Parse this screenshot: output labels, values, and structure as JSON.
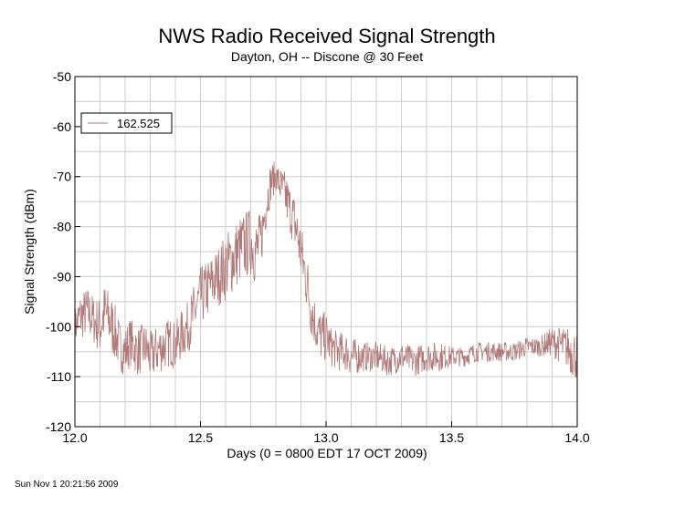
{
  "chart_data": {
    "type": "line",
    "title": "NWS Radio Received Signal Strength",
    "subtitle": "Dayton, OH -- Discone @ 30 Feet",
    "xlabel": "Days (0 = 0800 EDT 17 OCT 2009)",
    "ylabel": "Signal Strength (dBm)",
    "xlim": [
      12.0,
      14.0
    ],
    "ylim": [
      -120,
      -50
    ],
    "x_ticks": [
      12.0,
      12.5,
      13.0,
      13.5,
      14.0
    ],
    "x_tick_labels": [
      "12.0",
      "12.5",
      "13.0",
      "13.5",
      "14.0"
    ],
    "y_ticks": [
      -50,
      -60,
      -70,
      -80,
      -90,
      -100,
      -110,
      -120
    ],
    "y_tick_labels": [
      "-50",
      "-60",
      "-70",
      "-80",
      "-90",
      "-100",
      "-110",
      "-120"
    ],
    "grid": true,
    "legend_position": "top-left",
    "series": [
      {
        "name": "162.525",
        "color": "#b07a7a",
        "x": [
          12.0,
          12.02,
          12.05,
          12.08,
          12.1,
          12.12,
          12.15,
          12.18,
          12.2,
          12.22,
          12.25,
          12.28,
          12.3,
          12.32,
          12.35,
          12.38,
          12.4,
          12.42,
          12.45,
          12.47,
          12.5,
          12.52,
          12.55,
          12.57,
          12.6,
          12.62,
          12.65,
          12.67,
          12.7,
          12.72,
          12.74,
          12.76,
          12.78,
          12.8,
          12.82,
          12.84,
          12.86,
          12.88,
          12.9,
          12.92,
          12.94,
          12.96,
          12.98,
          13.0,
          13.02,
          13.05,
          13.08,
          13.1,
          13.15,
          13.2,
          13.25,
          13.3,
          13.35,
          13.4,
          13.45,
          13.5,
          13.55,
          13.6,
          13.65,
          13.7,
          13.75,
          13.8,
          13.85,
          13.9,
          13.95,
          13.98,
          14.0
        ],
        "values": [
          -100,
          -98,
          -97,
          -99,
          -100,
          -97,
          -100,
          -104,
          -105,
          -103,
          -105,
          -104,
          -106,
          -105,
          -104,
          -103,
          -104,
          -102,
          -100,
          -98,
          -94,
          -93,
          -91,
          -90,
          -88,
          -87,
          -85,
          -84,
          -83,
          -85,
          -83,
          -76,
          -71,
          -70,
          -72,
          -74,
          -77,
          -80,
          -85,
          -90,
          -96,
          -100,
          -102,
          -102,
          -104,
          -105,
          -105,
          -106,
          -106,
          -106,
          -107,
          -106,
          -107,
          -106,
          -106,
          -106,
          -106,
          -105,
          -105,
          -105,
          -105,
          -104,
          -104,
          -103,
          -104,
          -105,
          -106
        ],
        "noise": [
          4,
          5,
          5,
          5,
          6,
          6,
          6,
          5,
          5,
          5,
          5,
          5,
          5,
          5,
          5,
          5,
          5,
          5,
          5,
          6,
          6,
          6,
          6,
          6,
          7,
          7,
          7,
          7,
          7,
          7,
          6,
          5,
          4,
          3,
          4,
          5,
          5,
          6,
          6,
          6,
          6,
          5,
          5,
          5,
          4,
          4,
          4,
          4,
          3,
          3,
          3,
          3,
          3,
          3,
          3,
          2,
          2,
          2,
          2,
          2,
          2,
          2,
          2,
          3,
          4,
          5,
          5
        ]
      }
    ]
  },
  "footer": {
    "timestamp": "Sun Nov  1 20:21:56 2009"
  }
}
